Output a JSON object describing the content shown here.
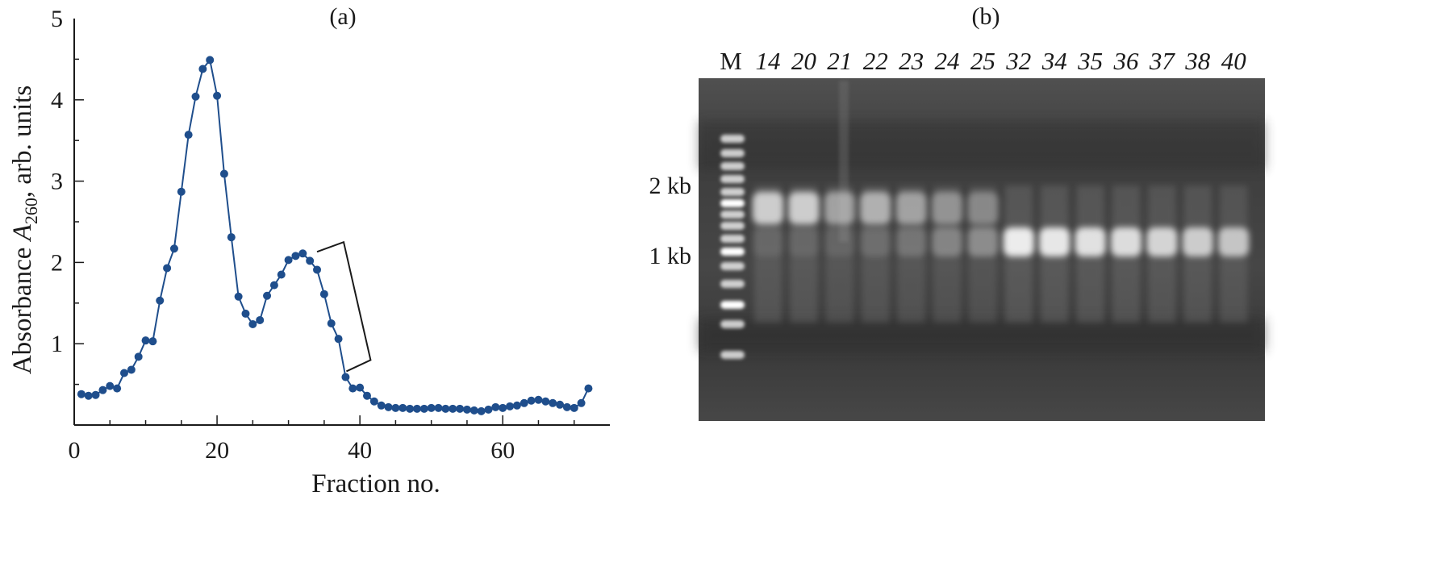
{
  "chart_data": [
    {
      "type": "line",
      "panel_label": "(a)",
      "xlabel": "Fraction no.",
      "ylabel_main": "Absorbance ",
      "ylabel_symbol": "A",
      "ylabel_subscript": "260",
      "ylabel_rest": ", arb. units",
      "xlim": [
        0,
        75
      ],
      "ylim": [
        0,
        5
      ],
      "xticks": [
        0,
        20,
        40,
        60
      ],
      "yticks": [
        1,
        2,
        3,
        4,
        5
      ],
      "grid": false,
      "bracket": {
        "x1": 34,
        "y1": 2.25,
        "x2": 41.5,
        "y2": 0.68,
        "arm_y": 0.8
      },
      "series": [
        {
          "color": "#1f4e8c",
          "x": [
            1,
            2,
            3,
            4,
            5,
            6,
            7,
            8,
            9,
            10,
            11,
            12,
            13,
            14,
            15,
            16,
            17,
            18,
            19,
            20,
            21,
            22,
            23,
            24,
            25,
            26,
            27,
            28,
            29,
            30,
            31,
            32,
            33,
            34,
            35,
            36,
            37,
            38,
            39,
            40,
            41,
            42,
            43,
            44,
            45,
            46,
            47,
            48,
            49,
            50,
            51,
            52,
            53,
            54,
            55,
            56,
            57,
            58,
            59,
            60,
            61,
            62,
            63,
            64,
            65,
            66,
            67,
            68,
            69,
            70,
            71,
            72
          ],
          "y": [
            0.38,
            0.36,
            0.37,
            0.43,
            0.48,
            0.45,
            0.64,
            0.68,
            0.84,
            1.04,
            1.03,
            1.53,
            1.93,
            2.17,
            2.87,
            3.57,
            4.04,
            4.38,
            4.49,
            4.05,
            3.09,
            2.31,
            1.58,
            1.37,
            1.24,
            1.29,
            1.59,
            1.72,
            1.85,
            2.03,
            2.08,
            2.11,
            2.02,
            1.91,
            1.61,
            1.25,
            1.06,
            0.59,
            0.45,
            0.46,
            0.36,
            0.29,
            0.24,
            0.22,
            0.21,
            0.21,
            0.2,
            0.2,
            0.2,
            0.21,
            0.21,
            0.2,
            0.2,
            0.2,
            0.19,
            0.18,
            0.17,
            0.19,
            0.22,
            0.21,
            0.23,
            0.24,
            0.27,
            0.3,
            0.31,
            0.29,
            0.27,
            0.25,
            0.22,
            0.21,
            0.27,
            0.45
          ]
        }
      ]
    },
    {
      "type": "gel",
      "panel_label": "(b)",
      "marker_lane_label": "M",
      "lanes": [
        "14",
        "20",
        "21",
        "22",
        "23",
        "24",
        "25",
        "32",
        "34",
        "35",
        "36",
        "37",
        "38",
        "40"
      ],
      "size_markers": [
        "2 kb",
        "1 kb"
      ],
      "band_intensity_2kb": [
        0.85,
        0.85,
        0.55,
        0.65,
        0.55,
        0.45,
        0.38,
        0,
        0,
        0,
        0,
        0,
        0,
        0
      ],
      "band_intensity_1kb": [
        0.1,
        0.1,
        0.1,
        0.15,
        0.2,
        0.3,
        0.35,
        0.95,
        0.92,
        0.88,
        0.85,
        0.8,
        0.75,
        0.7
      ]
    }
  ]
}
